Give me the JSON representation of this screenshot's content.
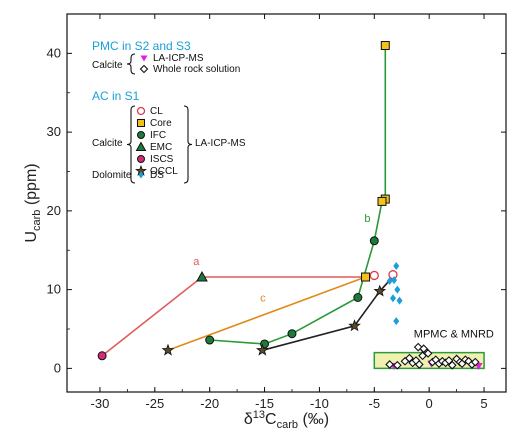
{
  "chart_data": {
    "type": "scatter",
    "xlabel": "δ13Ccarb (‰)",
    "ylabel": "Ucarb (ppm)",
    "xlim": [
      -33,
      7
    ],
    "ylim": [
      -3,
      45
    ],
    "x_ticks": [
      -30,
      -25,
      -20,
      -15,
      -10,
      -5,
      0,
      5
    ],
    "y_ticks": [
      0,
      10,
      20,
      30,
      40
    ],
    "grid": false,
    "legend": {
      "pmc_heading": "PMC in S2 and S3",
      "pmc_group_label": "Calcite",
      "pmc_items": [
        "LA-ICP-MS",
        "Whole rock solution"
      ],
      "ac_heading": "AC in S1",
      "calcite_label": "Calcite",
      "calcite_items": [
        "CL",
        "Core",
        "IFC",
        "EMC",
        "ISCS",
        "OCCL"
      ],
      "calcite_method": "LA-ICP-MS",
      "dolomite_label": "Dolomite",
      "dolomite_items": [
        "DS"
      ]
    },
    "series": [
      {
        "name": "CL",
        "color": "#e03a4a",
        "marker": "open-circle",
        "x": [
          -5.0,
          -3.3
        ],
        "y": [
          11.8,
          11.9
        ]
      },
      {
        "name": "Core",
        "color": "#f2c21a",
        "marker": "square",
        "x": [
          -5.8,
          -4.0,
          -4.0,
          -4.3
        ],
        "y": [
          11.6,
          21.5,
          41.0,
          21.2
        ]
      },
      {
        "name": "IFC",
        "color": "#1e7a3c",
        "marker": "circle",
        "x": [
          -20.0,
          -15.0,
          -12.5,
          -6.5,
          -5.0
        ],
        "y": [
          3.6,
          3.1,
          4.4,
          9.0,
          16.2
        ]
      },
      {
        "name": "EMC",
        "color": "#1e7a3c",
        "marker": "triangle",
        "x": [
          -20.7
        ],
        "y": [
          11.6
        ]
      },
      {
        "name": "ISCS",
        "color": "#d42a78",
        "marker": "circle",
        "x": [
          -29.8
        ],
        "y": [
          1.6
        ]
      },
      {
        "name": "OCCL",
        "color": "#5a4a2a",
        "marker": "star",
        "x": [
          -23.8,
          -15.2,
          -6.8,
          -4.5
        ],
        "y": [
          2.3,
          2.3,
          5.4,
          9.8
        ]
      },
      {
        "name": "DS",
        "color": "#1aa0d8",
        "marker": "diamond",
        "x": [
          -3.0,
          -3.2,
          -2.9,
          -2.7,
          -3.3,
          -3.0,
          -3.6
        ],
        "y": [
          13.0,
          11.2,
          10.0,
          8.6,
          8.9,
          6.0,
          11.1
        ]
      },
      {
        "name": "LA-ICP-MS",
        "color": "#e020e0",
        "marker": "triangle-down",
        "x": [
          -3.2,
          0.2,
          4.5
        ],
        "y": [
          0.3,
          0.6,
          0.3
        ]
      },
      {
        "name": "Whole rock solution",
        "color": "#111111",
        "marker": "open-diamond",
        "x": [
          -3.6,
          -2.9,
          -2.2,
          -1.8,
          -1.5,
          -1.2,
          -0.9,
          -0.6,
          -0.4,
          -0.1,
          0.3,
          0.6,
          0.9,
          1.2,
          1.5,
          1.8,
          2.1,
          2.5,
          2.8,
          3.0,
          3.3,
          3.6,
          3.9,
          4.2,
          -1.0,
          -0.5
        ],
        "y": [
          0.5,
          0.4,
          0.9,
          1.3,
          0.7,
          1.0,
          0.5,
          1.6,
          2.3,
          1.9,
          0.8,
          1.1,
          0.6,
          0.9,
          0.7,
          1.0,
          0.4,
          1.2,
          0.8,
          0.6,
          1.1,
          0.9,
          0.5,
          0.8,
          2.7,
          2.5
        ]
      }
    ],
    "trend_lines": [
      {
        "label": "a",
        "color": "#e05a5a",
        "x": [
          -29.8,
          -20.7,
          -5.8
        ],
        "y": [
          1.6,
          11.6,
          11.6
        ],
        "label_at": [
          -21.5,
          13.1
        ]
      },
      {
        "label": "b",
        "color": "#2a9a3a",
        "x": [
          -6.5,
          -5.0,
          -4.3,
          -4.0,
          -4.0
        ],
        "y": [
          9.0,
          16.2,
          21.2,
          21.5,
          41.0
        ],
        "label_at": [
          -5.9,
          18.6
        ]
      },
      {
        "label": "c",
        "color": "#e08a1a",
        "x": [
          -23.8,
          -5.8
        ],
        "y": [
          2.3,
          11.6
        ],
        "label_at": [
          -15.4,
          8.5
        ]
      },
      {
        "label": "",
        "color": "#222222",
        "x": [
          -15.2,
          -6.8,
          -4.5,
          -3.4
        ],
        "y": [
          2.3,
          5.4,
          9.8,
          11.5
        ],
        "label_at": null
      },
      {
        "label": "",
        "color": "#2a9a3a",
        "x": [
          -20.0,
          -15.0,
          -12.5,
          -6.5
        ],
        "y": [
          3.6,
          3.1,
          4.4,
          9.0
        ],
        "label_at": null
      }
    ],
    "annotations": [
      {
        "text": "MPMC & MNRD",
        "x": -1.4,
        "y": 3.9
      },
      {
        "box": {
          "x0": -5.0,
          "x1": 5.0,
          "y0": 0.0,
          "y1": 2.0,
          "fill": "#f0f0b0",
          "stroke": "#2a9a3a"
        }
      }
    ]
  }
}
